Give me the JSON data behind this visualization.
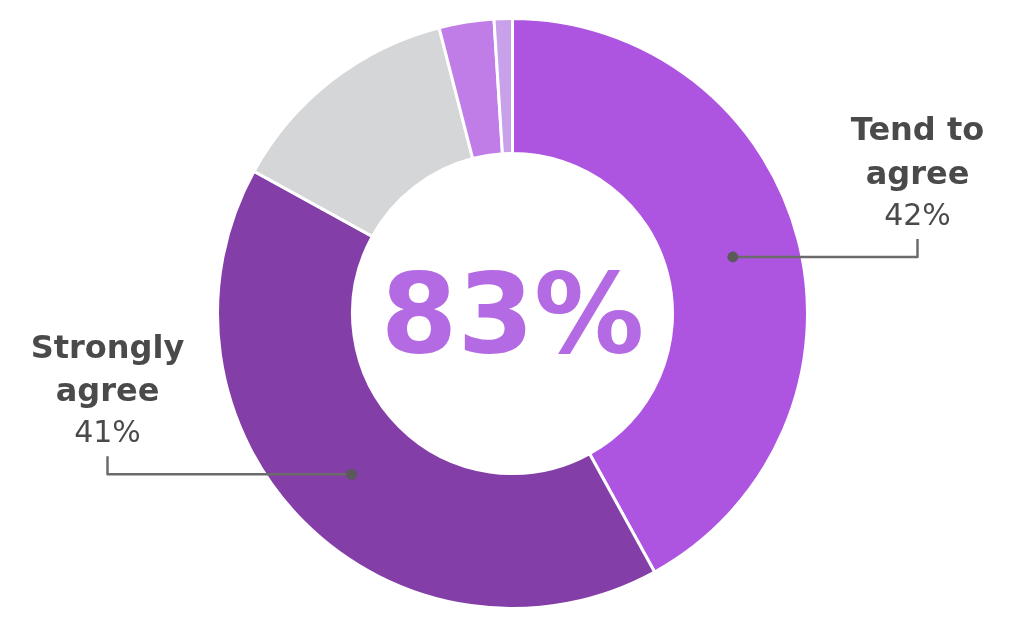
{
  "chart_data": {
    "type": "donut",
    "categories": [
      "Tend to agree",
      "Strongly agree",
      null,
      null,
      null
    ],
    "values": [
      42,
      41,
      13,
      3,
      1
    ],
    "value_labels": [
      "42%",
      "41%",
      null,
      null,
      null
    ],
    "colors": [
      "#ad55e0",
      "#833ea8",
      "#d5d6d8",
      "#c07de8",
      "#c9a0ea"
    ],
    "annotations": [
      "83%"
    ]
  }
}
